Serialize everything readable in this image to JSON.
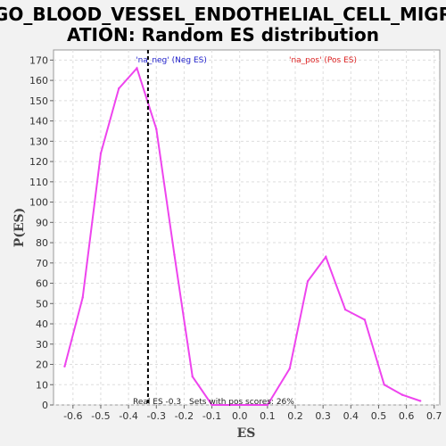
{
  "chart_data": {
    "type": "line",
    "title_line1": "GO_BLOOD_VESSEL_ENDOTHELIAL_CELL_MIGR",
    "title_line2": "ATION: Random ES distribution",
    "xlabel": "ES",
    "ylabel": "P(ES)",
    "xlim": [
      -0.67,
      0.72
    ],
    "ylim": [
      0,
      175
    ],
    "xticks": [
      -0.6,
      -0.5,
      -0.4,
      -0.3,
      -0.2,
      -0.1,
      0.0,
      0.1,
      0.2,
      0.3,
      0.4,
      0.5,
      0.6,
      0.7
    ],
    "xtick_labels": [
      "-0.6",
      "-0.5",
      "-0.4",
      "-0.3",
      "-0.2",
      "-0.1",
      "0.0",
      "0.1",
      "0.2",
      "0.3",
      "0.4",
      "0.5",
      "0.6",
      "0.7"
    ],
    "yticks": [
      0,
      10,
      20,
      30,
      40,
      50,
      60,
      70,
      80,
      90,
      100,
      110,
      120,
      130,
      140,
      150,
      160,
      170
    ],
    "grid": true,
    "series": [
      {
        "color": "#ee44ee",
        "x": [
          -0.63,
          -0.565,
          -0.5,
          -0.435,
          -0.37,
          -0.3,
          -0.235,
          -0.17,
          -0.1,
          -0.035,
          0.03,
          0.1,
          0.18,
          0.245,
          0.31,
          0.38,
          0.45,
          0.52,
          0.585,
          0.65
        ],
        "y": [
          19,
          53,
          124,
          156,
          166,
          136,
          74,
          14,
          0,
          0,
          0,
          0,
          18,
          61,
          73,
          47,
          42,
          10,
          5,
          2
        ]
      }
    ],
    "real_es": -0.33,
    "real_es_color": "#000000",
    "annotations": {
      "neg_label": "'na_neg' (Neg ES)",
      "neg_color": "#2222cc",
      "pos_label": "'na_pos' (Pos ES)",
      "pos_color": "#dd2222",
      "real_es_label": "Real ES -0.3",
      "pos_scores_label": "Sets with pos scores: 26%"
    }
  }
}
